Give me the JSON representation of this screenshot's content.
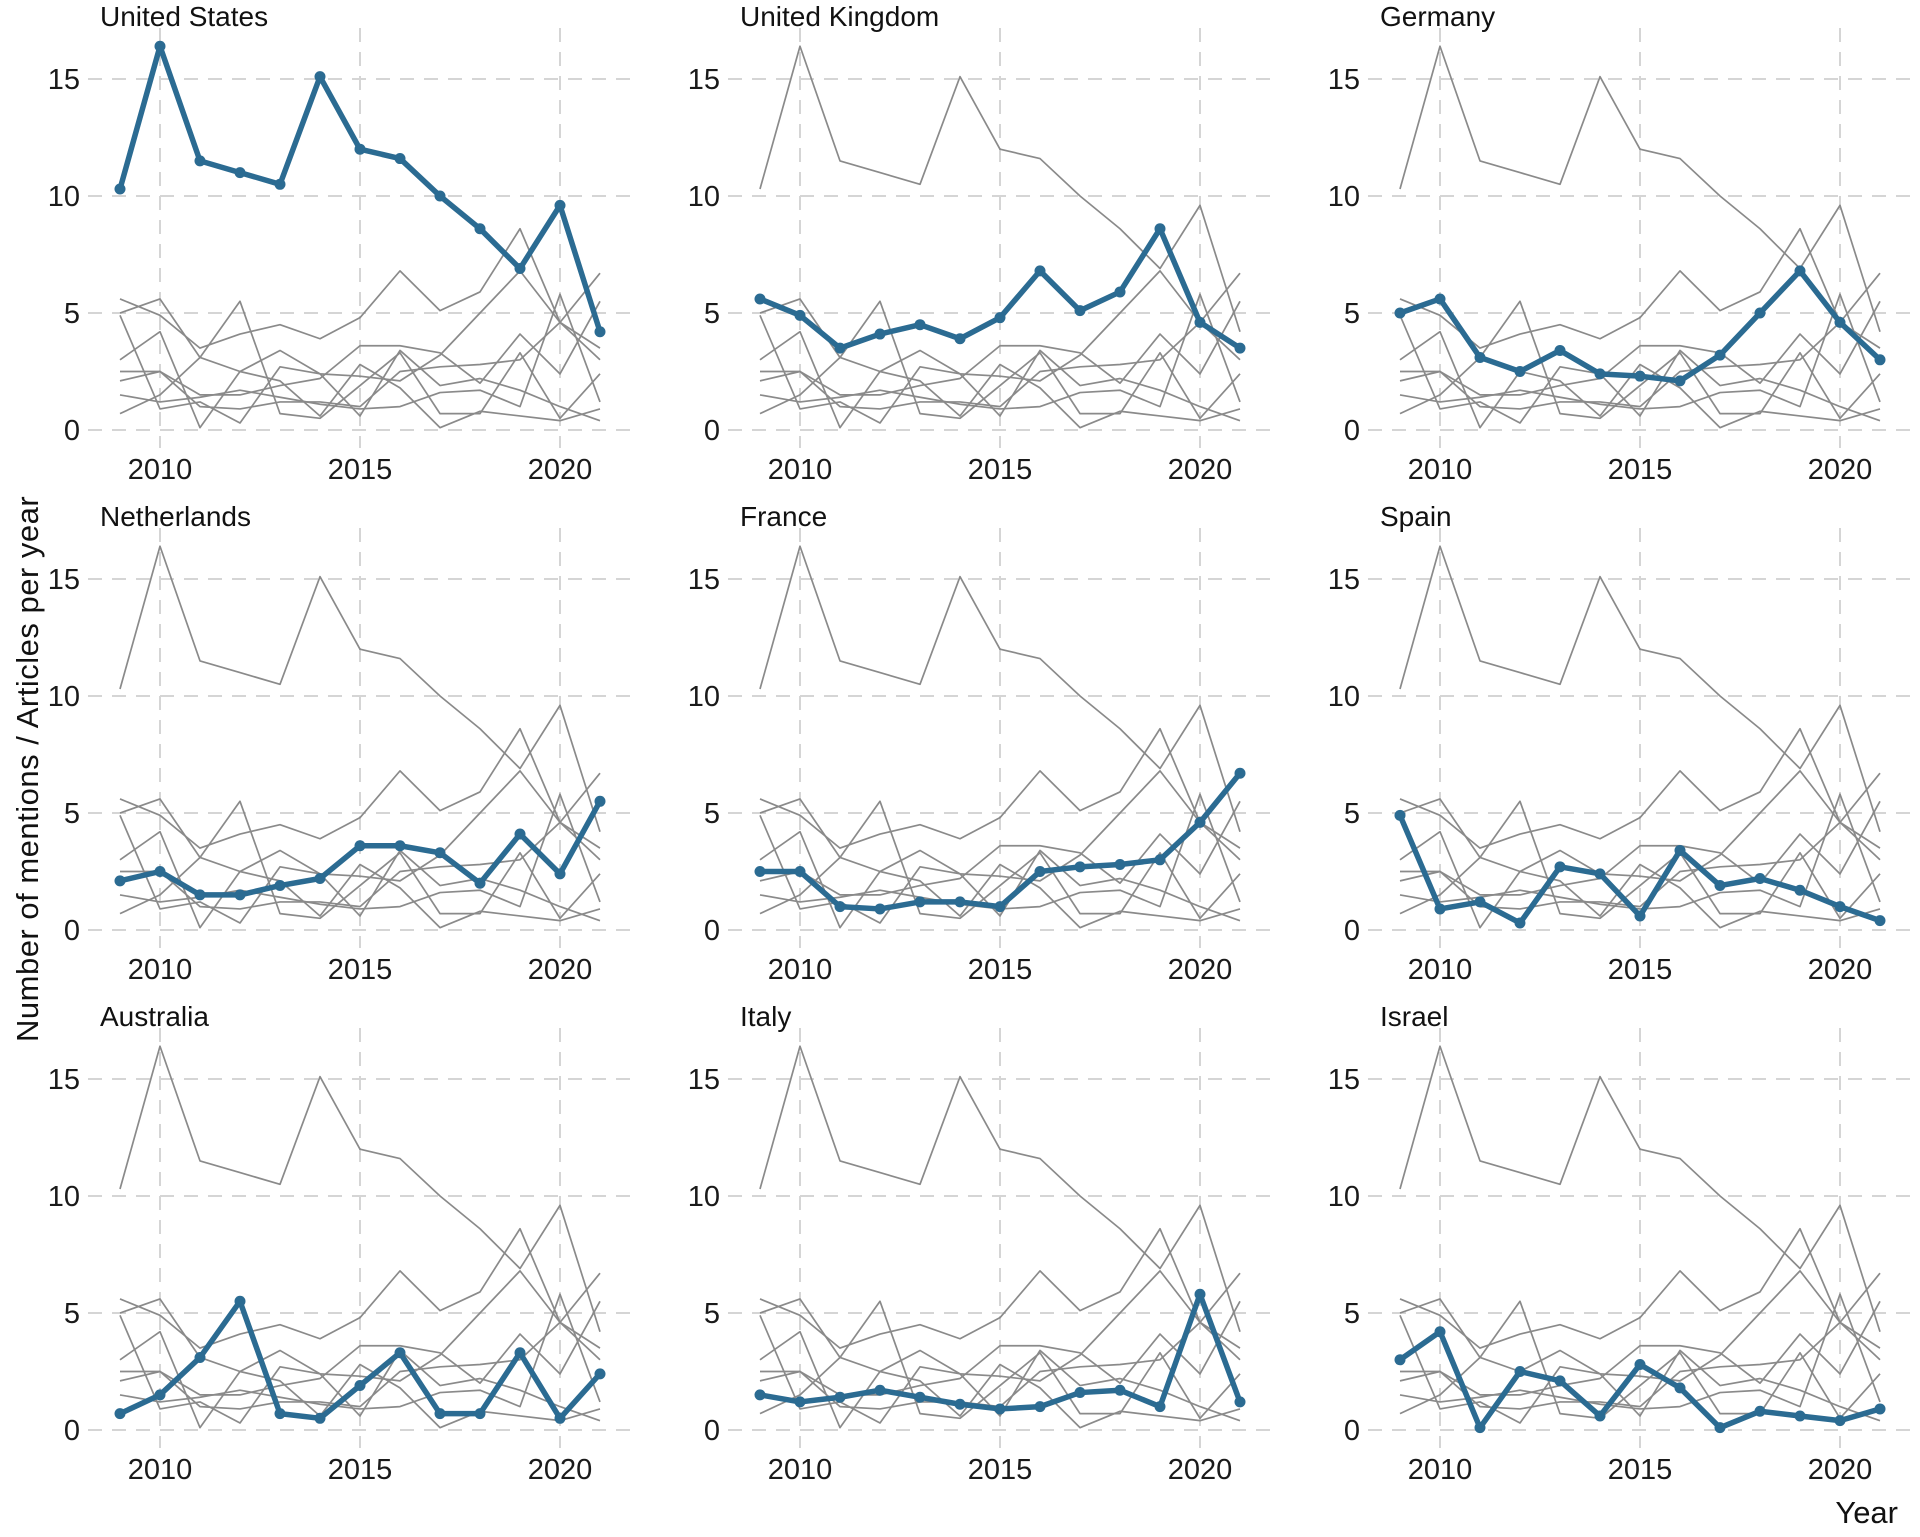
{
  "figure": {
    "ylabel": "Number of mentions / Articles per year",
    "xlabel": "Year"
  },
  "colors": {
    "highlight_line": "#2b6b92",
    "other_line": "#8a8a8a",
    "gridline": "#d5d5d5",
    "text": "#1a1a1a"
  },
  "chart_data": {
    "type": "line",
    "layout": "3x3 small multiples, one country highlighted per panel, all other countries shown as thin gray lines",
    "x": [
      2009,
      2010,
      2011,
      2012,
      2013,
      2014,
      2015,
      2016,
      2017,
      2018,
      2019,
      2020,
      2021
    ],
    "x_ticks": [
      2010,
      2015,
      2020
    ],
    "y_ticks": [
      0,
      5,
      10,
      15
    ],
    "ylim": [
      0,
      17
    ],
    "grid": "dashed",
    "xlabel": "Year",
    "ylabel": "Number of mentions / Articles per year",
    "panels": [
      "United States",
      "United Kingdom",
      "Germany",
      "Netherlands",
      "France",
      "Spain",
      "Australia",
      "Italy",
      "Israel"
    ],
    "series": [
      {
        "name": "United States",
        "values": [
          10.3,
          16.4,
          11.5,
          11.0,
          10.5,
          15.1,
          12.0,
          11.6,
          10.0,
          8.6,
          6.9,
          9.6,
          4.2
        ]
      },
      {
        "name": "United Kingdom",
        "values": [
          5.6,
          4.9,
          3.5,
          4.1,
          4.5,
          3.9,
          4.8,
          6.8,
          5.1,
          5.9,
          8.6,
          4.6,
          3.5
        ]
      },
      {
        "name": "Germany",
        "values": [
          5.0,
          5.6,
          3.1,
          2.5,
          3.4,
          2.4,
          2.3,
          2.1,
          3.2,
          5.0,
          6.8,
          4.6,
          3.0
        ]
      },
      {
        "name": "Netherlands",
        "values": [
          2.1,
          2.5,
          1.5,
          1.5,
          1.9,
          2.2,
          3.6,
          3.6,
          3.3,
          2.0,
          4.1,
          2.4,
          5.5
        ]
      },
      {
        "name": "France",
        "values": [
          2.5,
          2.5,
          1.0,
          0.9,
          1.2,
          1.2,
          1.0,
          2.5,
          2.7,
          2.8,
          3.0,
          4.6,
          6.7
        ]
      },
      {
        "name": "Spain",
        "values": [
          4.9,
          0.9,
          1.2,
          0.3,
          2.7,
          2.4,
          0.6,
          3.4,
          1.9,
          2.2,
          1.7,
          1.0,
          0.4
        ]
      },
      {
        "name": "Australia",
        "values": [
          0.7,
          1.5,
          3.1,
          5.5,
          0.7,
          0.5,
          1.9,
          3.3,
          0.7,
          0.7,
          3.3,
          0.5,
          2.4
        ]
      },
      {
        "name": "Italy",
        "values": [
          1.5,
          1.2,
          1.4,
          1.7,
          1.4,
          1.1,
          0.9,
          1.0,
          1.6,
          1.7,
          1.0,
          5.8,
          1.2
        ]
      },
      {
        "name": "Israel",
        "values": [
          3.0,
          4.2,
          0.1,
          2.5,
          2.1,
          0.6,
          2.8,
          1.8,
          0.1,
          0.8,
          0.6,
          0.4,
          0.9
        ]
      }
    ]
  }
}
